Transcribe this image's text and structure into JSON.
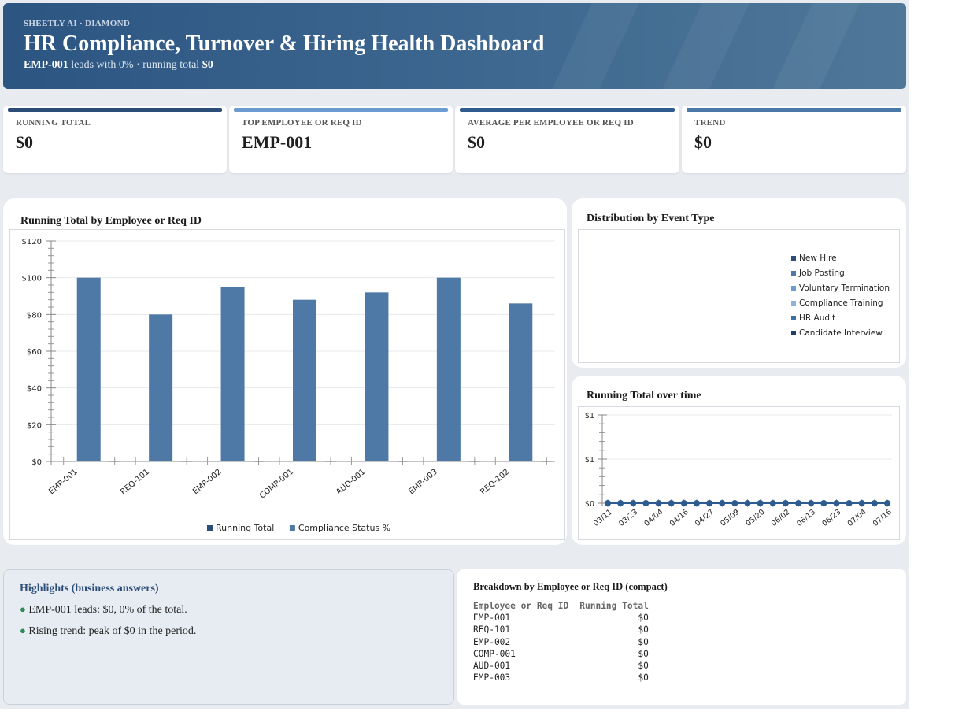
{
  "header": {
    "brand": "SHEETLY AI · DIAMOND",
    "title": "HR Compliance, Turnover & Hiring Health Dashboard",
    "subtitle_lead": "EMP-001",
    "subtitle_mid": " leads with 0% · running total ",
    "subtitle_total": "$0"
  },
  "kpis": [
    {
      "label": "RUNNING TOTAL",
      "value": "$0",
      "accent": "#2c4d78"
    },
    {
      "label": "TOP EMPLOYEE OR REQ ID",
      "value": "EMP-001",
      "accent": "#6b9bd1"
    },
    {
      "label": "AVERAGE PER EMPLOYEE OR REQ ID",
      "value": "$0",
      "accent": "#2e5c91"
    },
    {
      "label": "TREND",
      "value": "$0",
      "accent": "#4a78a8"
    }
  ],
  "colors": {
    "running_total": "#2c4d78",
    "compliance": "#4e79a7",
    "line": "#2e5c91"
  },
  "chart_data": [
    {
      "type": "bar",
      "title": "Running Total by Employee or Req ID",
      "categories": [
        "EMP-001",
        "REQ-101",
        "EMP-002",
        "COMP-001",
        "AUD-001",
        "EMP-003",
        "REQ-102"
      ],
      "series": [
        {
          "name": "Running Total",
          "values": [
            0,
            0,
            0,
            0,
            0,
            0,
            0
          ]
        },
        {
          "name": "Compliance Status %",
          "values": [
            100,
            80,
            95,
            88,
            92,
            100,
            86
          ]
        }
      ],
      "yticks": [
        "$0",
        "$20",
        "$40",
        "$60",
        "$80",
        "$100",
        "$120"
      ],
      "ylim": [
        0,
        120
      ],
      "legend": "bottom",
      "grid": true
    },
    {
      "type": "pie",
      "title": "Distribution by Event Type",
      "categories": [
        "New Hire",
        "Job Posting",
        "Voluntary Termination",
        "Compliance Training",
        "HR Audit",
        "Candidate Interview"
      ],
      "values": [
        0,
        0,
        0,
        0,
        0,
        0
      ],
      "colors": [
        "#2c4d78",
        "#4e79a7",
        "#6b9bd1",
        "#8fb3dc",
        "#3a6fa8",
        "#1f3f68"
      ],
      "legend": "right"
    },
    {
      "type": "line",
      "title": "Running Total over time",
      "x": [
        "03/11",
        "03/17",
        "03/23",
        "03/29",
        "04/04",
        "04/10",
        "04/16",
        "04/22",
        "04/27",
        "05/03",
        "05/09",
        "05/15",
        "05/20",
        "05/26",
        "06/02",
        "06/08",
        "06/13",
        "06/18",
        "06/23",
        "06/29",
        "07/04",
        "07/10",
        "07/16"
      ],
      "xticks": [
        "03/11",
        "03/23",
        "04/04",
        "04/16",
        "04/27",
        "05/09",
        "05/20",
        "06/02",
        "06/13",
        "06/23",
        "07/04",
        "07/16"
      ],
      "values": [
        0,
        0,
        0,
        0,
        0,
        0,
        0,
        0,
        0,
        0,
        0,
        0,
        0,
        0,
        0,
        0,
        0,
        0,
        0,
        0,
        0,
        0,
        0
      ],
      "yticks": [
        "$0",
        "$1",
        "$1"
      ],
      "grid": true
    }
  ],
  "highlights": {
    "title": "Highlights (business answers)",
    "items": [
      "EMP-001 leads: $0, 0% of the total.",
      "Rising trend: peak of $0 in the period."
    ]
  },
  "breakdown": {
    "title": "Breakdown by Employee or Req ID (compact)",
    "headers": [
      "Employee or Req ID",
      "Running Total"
    ],
    "rows": [
      [
        "EMP-001",
        "$0"
      ],
      [
        "REQ-101",
        "$0"
      ],
      [
        "EMP-002",
        "$0"
      ],
      [
        "COMP-001",
        "$0"
      ],
      [
        "AUD-001",
        "$0"
      ],
      [
        "EMP-003",
        "$0"
      ]
    ]
  }
}
